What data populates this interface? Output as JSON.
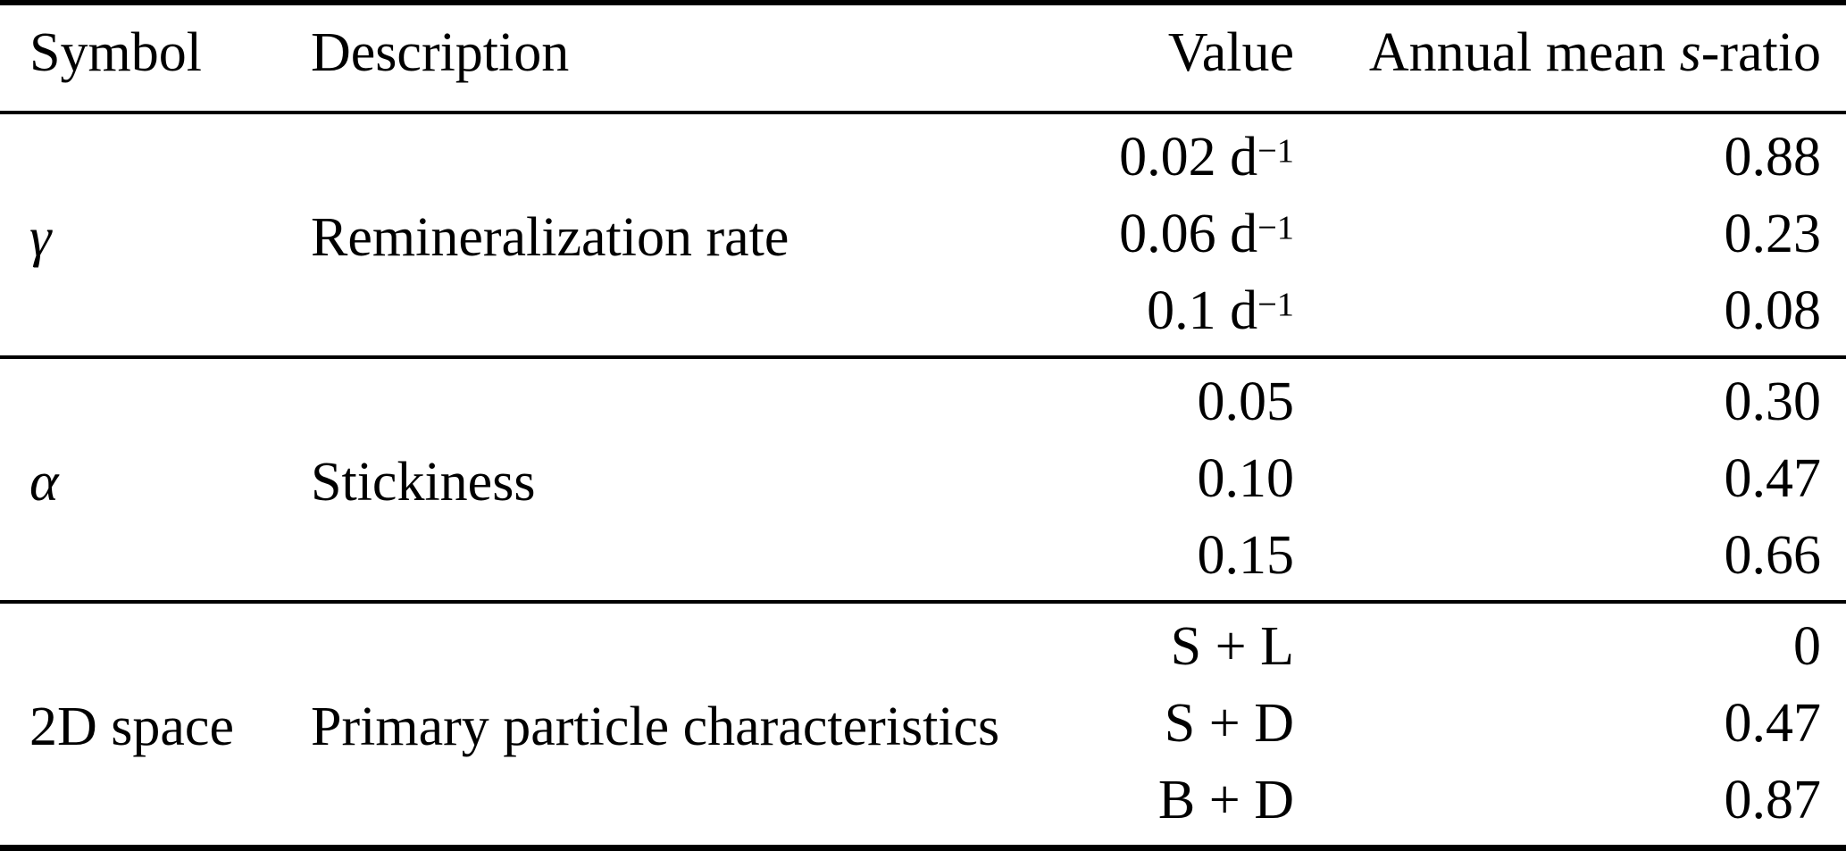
{
  "page": {
    "background": "#ffffff",
    "text_color": "#000000",
    "rule_color": "#000000"
  },
  "table": {
    "headers": {
      "symbol": "Symbol",
      "description": "Description",
      "value": "Value",
      "sratio_prefix": "Annual mean ",
      "sratio_italic": "s",
      "sratio_suffix": "-ratio"
    },
    "groups": [
      {
        "symbol": "γ",
        "symbol_italic": true,
        "description": "Remineralization rate",
        "rows": [
          {
            "value": "0.02 d",
            "value_sup": "−1",
            "s_ratio": "0.88"
          },
          {
            "value": "0.06 d",
            "value_sup": "−1",
            "s_ratio": "0.23"
          },
          {
            "value": "0.1 d",
            "value_sup": "−1",
            "s_ratio": "0.08"
          }
        ]
      },
      {
        "symbol": "α",
        "symbol_italic": true,
        "description": "Stickiness",
        "rows": [
          {
            "value": "0.05",
            "s_ratio": "0.30"
          },
          {
            "value": "0.10",
            "s_ratio": "0.47"
          },
          {
            "value": "0.15",
            "s_ratio": "0.66"
          }
        ]
      },
      {
        "symbol": "2D space",
        "symbol_italic": false,
        "description": "Primary particle characteristics",
        "rows": [
          {
            "value": "S + L",
            "s_ratio": "0"
          },
          {
            "value": "S + D",
            "s_ratio": "0.47"
          },
          {
            "value": "B + D",
            "s_ratio": "0.87"
          }
        ]
      }
    ]
  }
}
